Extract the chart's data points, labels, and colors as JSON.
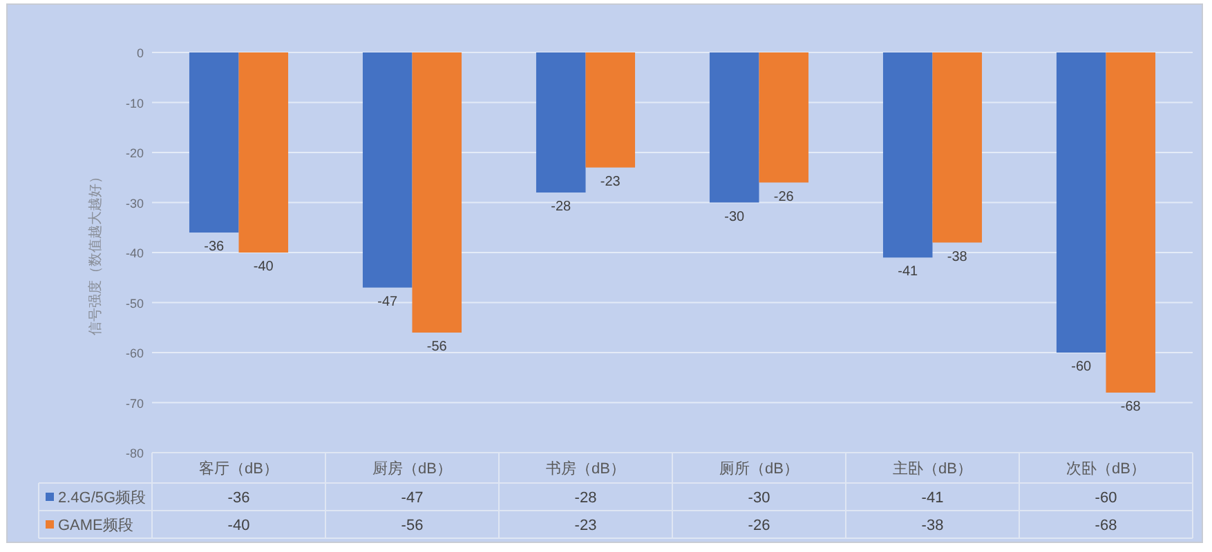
{
  "chart_data": {
    "type": "bar",
    "ylabel": "信号强度（数值越大越好）",
    "categories": [
      "客厅（dB）",
      "厨房（dB）",
      "书房（dB）",
      "厕所（dB）",
      "主卧（dB）",
      "次卧（dB）"
    ],
    "series": [
      {
        "name": "2.4G/5G频段",
        "color": "#4472c4",
        "values": [
          -36,
          -47,
          -28,
          -30,
          -41,
          -60
        ]
      },
      {
        "name": "GAME频段",
        "color": "#ed7d31",
        "values": [
          -40,
          -56,
          -23,
          -26,
          -38,
          -68
        ]
      }
    ],
    "ylim": [
      -80,
      0
    ],
    "yticks": [
      0,
      -10,
      -20,
      -30,
      -40,
      -50,
      -60,
      -70,
      -80
    ],
    "grid": "y",
    "legend": "bottom",
    "data_labels": true,
    "annotations": [
      {
        "text": "-36",
        "x": "客厅（dB）",
        "y": -36
      },
      {
        "text": "-40",
        "x": "客厅（dB）",
        "y": -40
      },
      {
        "text": "-47",
        "x": "厨房（dB）",
        "y": -47
      },
      {
        "text": "-56",
        "x": "厨房（dB）",
        "y": -56
      },
      {
        "text": "-28",
        "x": "书房（dB）",
        "y": -28
      },
      {
        "text": "-23",
        "x": "书房（dB）",
        "y": -23
      },
      {
        "text": "-30",
        "x": "厕所（dB）",
        "y": -30
      },
      {
        "text": "-26",
        "x": "厕所（dB）",
        "y": -26
      },
      {
        "text": "-41",
        "x": "主卧（dB）",
        "y": -41
      },
      {
        "text": "-38",
        "x": "主卧（dB）",
        "y": -38
      },
      {
        "text": "-60",
        "x": "次卧（dB）",
        "y": -60
      },
      {
        "text": "-68",
        "x": "次卧（dB）",
        "y": -68
      }
    ]
  }
}
